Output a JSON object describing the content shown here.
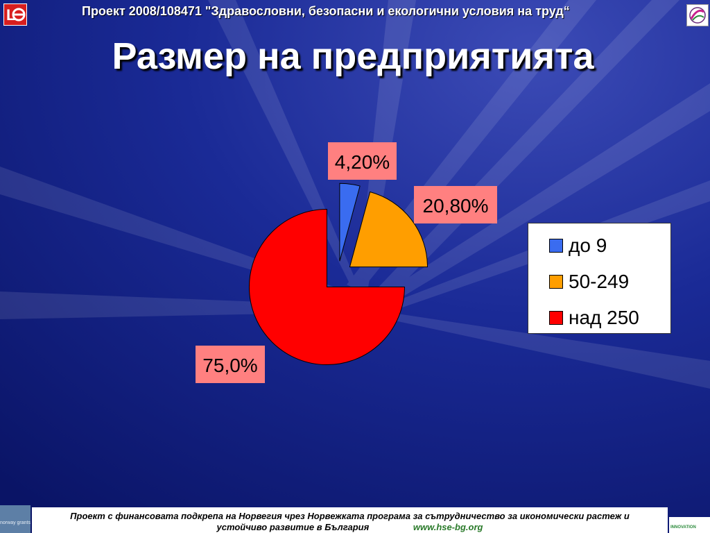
{
  "header": {
    "project_line": "Проект 2008/108471 \"Здравословни, безопасни и екологични условия на труд“"
  },
  "title": "Размер на предприятията",
  "chart_data": {
    "type": "pie",
    "title": "",
    "categories": [
      "до 9",
      "50-249",
      "над 250"
    ],
    "values": [
      4.2,
      20.8,
      75.0
    ],
    "labels": [
      "4,20%",
      "20,80%",
      "75,0%"
    ],
    "colors": [
      "#3a6cf0",
      "#ff9e00",
      "#ff0000"
    ],
    "exploded": true,
    "legend_position": "right"
  },
  "legend": {
    "items": [
      {
        "label": "до 9",
        "color": "#3a6cf0"
      },
      {
        "label": "50-249",
        "color": "#ff9e00"
      },
      {
        "label": "над 250",
        "color": "#ff0000"
      }
    ]
  },
  "footer": {
    "line1": "Проект с финансовата подкрепа на Норвегия чрез Норвежката програма за сътрудничество за икономически растеж и",
    "line2": "устойчиво развитие в България",
    "url": "www.hse-bg.org"
  },
  "logos": {
    "norway_text": "norway grants",
    "innovation_text": "INNOVATION"
  }
}
